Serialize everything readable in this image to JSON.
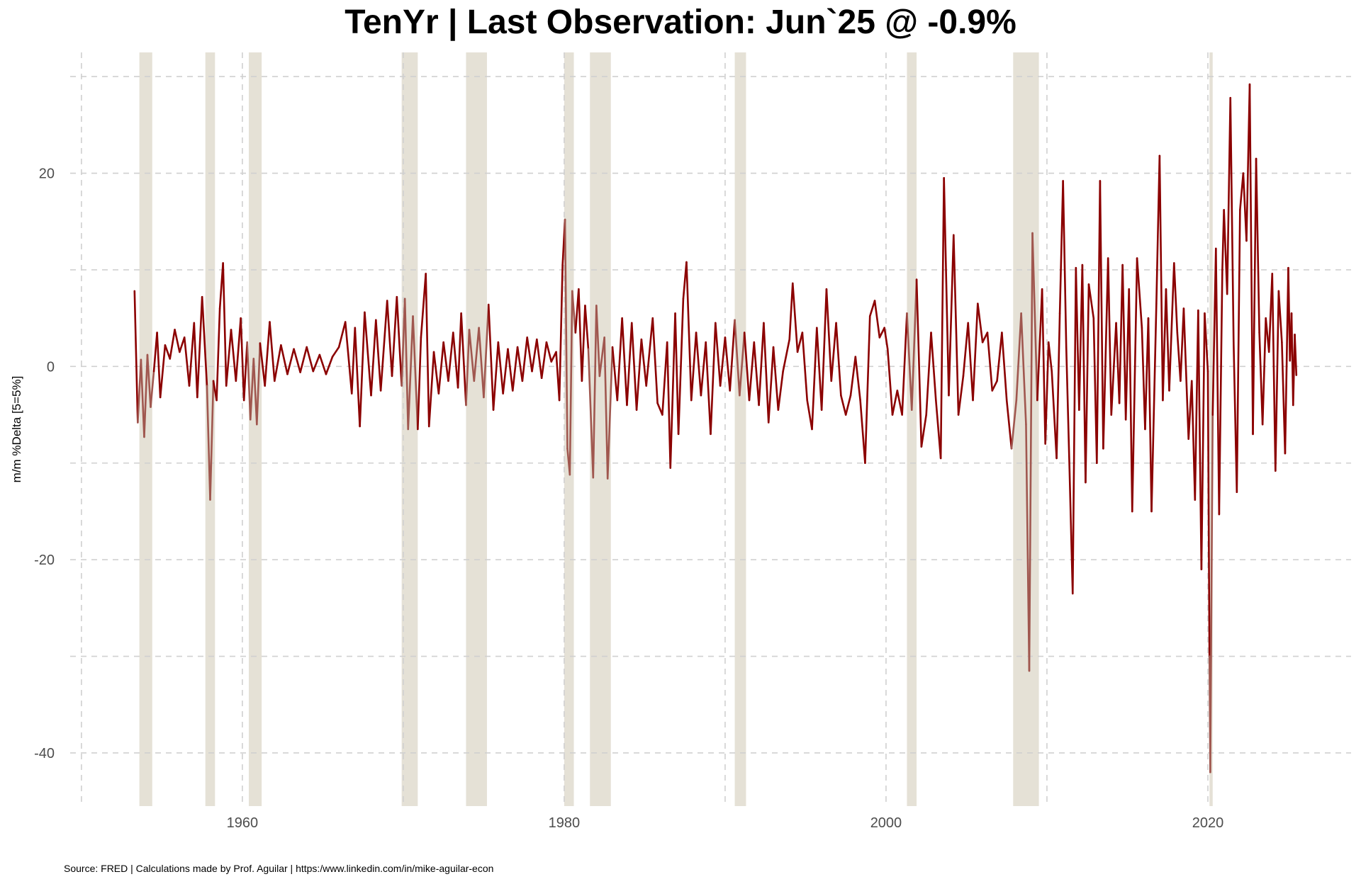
{
  "chart_data": {
    "type": "line",
    "title": "TenYr | Last Observation: Jun`25 @ -0.9%",
    "ylabel": "m/m %Delta [5=5%]",
    "xlabel": "",
    "xlim": [
      1949.3,
      2028.9
    ],
    "ylim": [
      -45.5,
      32.5
    ],
    "x_ticks": [
      1960,
      1980,
      2000,
      2020
    ],
    "x_tick_labels": [
      "1960",
      "1980",
      "2000",
      "2020"
    ],
    "y_ticks": [
      -40,
      -20,
      0,
      20
    ],
    "y_tick_labels": [
      "-40",
      "-20",
      "0",
      "20"
    ],
    "grid": true,
    "legend": "none",
    "line_color": "#8b0000",
    "recession_line_color": "#a0574f",
    "recession_band_color": "#e5e1d6",
    "recessions": [
      [
        1953.6,
        1954.4
      ],
      [
        1957.7,
        1958.3
      ],
      [
        1960.4,
        1961.2
      ],
      [
        1969.9,
        1970.9
      ],
      [
        1973.9,
        1975.2
      ],
      [
        1980.0,
        1980.6
      ],
      [
        1981.6,
        1982.9
      ],
      [
        1990.6,
        1991.3
      ],
      [
        2001.3,
        2001.9
      ],
      [
        2007.9,
        2009.5
      ],
      [
        2020.1,
        2020.3
      ]
    ],
    "series": [
      {
        "values": [
          [
            1953.3,
            7.8
          ],
          [
            1953.5,
            -5.8
          ],
          [
            1953.7,
            0.7
          ],
          [
            1953.9,
            -7.3
          ],
          [
            1954.1,
            1.2
          ],
          [
            1954.3,
            -4.2
          ],
          [
            1954.5,
            -0.5
          ],
          [
            1954.7,
            3.5
          ],
          [
            1954.9,
            -3.2
          ],
          [
            1955.2,
            2.2
          ],
          [
            1955.5,
            0.8
          ],
          [
            1955.8,
            3.8
          ],
          [
            1956.1,
            1.5
          ],
          [
            1956.4,
            3.0
          ],
          [
            1956.7,
            -2.0
          ],
          [
            1957.0,
            4.5
          ],
          [
            1957.2,
            -3.2
          ],
          [
            1957.5,
            7.2
          ],
          [
            1957.8,
            -2.0
          ],
          [
            1958.0,
            -13.8
          ],
          [
            1958.2,
            -1.5
          ],
          [
            1958.4,
            -3.5
          ],
          [
            1958.6,
            6.0
          ],
          [
            1958.8,
            10.7
          ],
          [
            1959.0,
            -2.0
          ],
          [
            1959.3,
            3.8
          ],
          [
            1959.6,
            -1.5
          ],
          [
            1959.9,
            5.0
          ],
          [
            1960.1,
            -3.5
          ],
          [
            1960.3,
            2.5
          ],
          [
            1960.5,
            -5.5
          ],
          [
            1960.7,
            0.8
          ],
          [
            1960.9,
            -6.0
          ],
          [
            1961.1,
            2.4
          ],
          [
            1961.4,
            -2.0
          ],
          [
            1961.7,
            4.6
          ],
          [
            1962.0,
            -1.5
          ],
          [
            1962.4,
            2.2
          ],
          [
            1962.8,
            -0.8
          ],
          [
            1963.2,
            1.8
          ],
          [
            1963.6,
            -0.6
          ],
          [
            1964.0,
            2.0
          ],
          [
            1964.4,
            -0.5
          ],
          [
            1964.8,
            1.2
          ],
          [
            1965.2,
            -0.8
          ],
          [
            1965.6,
            1.0
          ],
          [
            1966.0,
            2.0
          ],
          [
            1966.4,
            4.6
          ],
          [
            1966.8,
            -2.8
          ],
          [
            1967.0,
            4.0
          ],
          [
            1967.3,
            -6.2
          ],
          [
            1967.6,
            5.6
          ],
          [
            1968.0,
            -3.0
          ],
          [
            1968.3,
            4.8
          ],
          [
            1968.6,
            -2.5
          ],
          [
            1969.0,
            6.8
          ],
          [
            1969.3,
            -1.0
          ],
          [
            1969.6,
            7.2
          ],
          [
            1969.9,
            -2.0
          ],
          [
            1970.1,
            7.0
          ],
          [
            1970.3,
            -6.5
          ],
          [
            1970.6,
            5.2
          ],
          [
            1970.9,
            -6.5
          ],
          [
            1971.1,
            3.0
          ],
          [
            1971.4,
            9.6
          ],
          [
            1971.6,
            -6.2
          ],
          [
            1971.9,
            1.5
          ],
          [
            1972.2,
            -2.8
          ],
          [
            1972.5,
            2.5
          ],
          [
            1972.8,
            -1.5
          ],
          [
            1973.1,
            3.5
          ],
          [
            1973.4,
            -2.2
          ],
          [
            1973.6,
            5.5
          ],
          [
            1973.9,
            -4.0
          ],
          [
            1974.1,
            3.8
          ],
          [
            1974.4,
            -1.5
          ],
          [
            1974.7,
            4.0
          ],
          [
            1975.0,
            -3.2
          ],
          [
            1975.3,
            6.4
          ],
          [
            1975.6,
            -4.5
          ],
          [
            1975.9,
            2.5
          ],
          [
            1976.2,
            -2.8
          ],
          [
            1976.5,
            1.8
          ],
          [
            1976.8,
            -2.5
          ],
          [
            1977.1,
            2.0
          ],
          [
            1977.4,
            -1.5
          ],
          [
            1977.7,
            3.0
          ],
          [
            1978.0,
            -0.5
          ],
          [
            1978.3,
            2.8
          ],
          [
            1978.6,
            -1.2
          ],
          [
            1978.9,
            2.5
          ],
          [
            1979.2,
            0.5
          ],
          [
            1979.5,
            1.5
          ],
          [
            1979.7,
            -3.5
          ],
          [
            1979.9,
            10.5
          ],
          [
            1980.05,
            15.2
          ],
          [
            1980.2,
            -8.5
          ],
          [
            1980.35,
            -11.2
          ],
          [
            1980.5,
            7.8
          ],
          [
            1980.7,
            3.5
          ],
          [
            1980.9,
            8.0
          ],
          [
            1981.1,
            -1.5
          ],
          [
            1981.3,
            6.3
          ],
          [
            1981.5,
            1.8
          ],
          [
            1981.8,
            -11.5
          ],
          [
            1982.0,
            6.3
          ],
          [
            1982.2,
            -1.0
          ],
          [
            1982.5,
            3.0
          ],
          [
            1982.7,
            -11.6
          ],
          [
            1983.0,
            2.0
          ],
          [
            1983.3,
            -3.5
          ],
          [
            1983.6,
            5.0
          ],
          [
            1983.9,
            -4.0
          ],
          [
            1984.2,
            4.5
          ],
          [
            1984.5,
            -4.5
          ],
          [
            1984.8,
            2.8
          ],
          [
            1985.1,
            -2.0
          ],
          [
            1985.5,
            5.0
          ],
          [
            1985.8,
            -3.8
          ],
          [
            1986.1,
            -5.0
          ],
          [
            1986.4,
            2.5
          ],
          [
            1986.6,
            -10.5
          ],
          [
            1986.9,
            5.5
          ],
          [
            1987.1,
            -7.0
          ],
          [
            1987.4,
            7.0
          ],
          [
            1987.6,
            10.8
          ],
          [
            1987.9,
            -3.5
          ],
          [
            1988.2,
            3.5
          ],
          [
            1988.5,
            -3.0
          ],
          [
            1988.8,
            2.5
          ],
          [
            1989.1,
            -7.0
          ],
          [
            1989.4,
            4.5
          ],
          [
            1989.7,
            -2.0
          ],
          [
            1990.0,
            3.0
          ],
          [
            1990.3,
            -2.5
          ],
          [
            1990.6,
            4.8
          ],
          [
            1990.9,
            -3.0
          ],
          [
            1991.2,
            3.5
          ],
          [
            1991.5,
            -3.5
          ],
          [
            1991.8,
            2.5
          ],
          [
            1992.1,
            -4.0
          ],
          [
            1992.4,
            4.5
          ],
          [
            1992.7,
            -5.8
          ],
          [
            1993.0,
            2.0
          ],
          [
            1993.3,
            -4.5
          ],
          [
            1993.6,
            -0.5
          ],
          [
            1994.0,
            2.8
          ],
          [
            1994.2,
            8.6
          ],
          [
            1994.5,
            1.5
          ],
          [
            1994.8,
            3.5
          ],
          [
            1995.1,
            -3.5
          ],
          [
            1995.4,
            -6.5
          ],
          [
            1995.7,
            4.0
          ],
          [
            1996.0,
            -4.5
          ],
          [
            1996.3,
            8.0
          ],
          [
            1996.6,
            -1.5
          ],
          [
            1996.9,
            4.5
          ],
          [
            1997.2,
            -3.0
          ],
          [
            1997.5,
            -5.0
          ],
          [
            1997.8,
            -3.0
          ],
          [
            1998.1,
            1.0
          ],
          [
            1998.4,
            -3.5
          ],
          [
            1998.7,
            -10.0
          ],
          [
            1999.0,
            5.2
          ],
          [
            1999.3,
            6.8
          ],
          [
            1999.6,
            3.0
          ],
          [
            1999.9,
            4.0
          ],
          [
            2000.1,
            1.8
          ],
          [
            2000.4,
            -5.0
          ],
          [
            2000.7,
            -2.5
          ],
          [
            2001.0,
            -5.0
          ],
          [
            2001.3,
            5.5
          ],
          [
            2001.6,
            -4.5
          ],
          [
            2001.9,
            9.0
          ],
          [
            2002.2,
            -8.3
          ],
          [
            2002.5,
            -5.0
          ],
          [
            2002.8,
            3.5
          ],
          [
            2003.1,
            -3.5
          ],
          [
            2003.4,
            -9.5
          ],
          [
            2003.6,
            19.5
          ],
          [
            2003.9,
            -3.0
          ],
          [
            2004.2,
            13.6
          ],
          [
            2004.5,
            -5.0
          ],
          [
            2004.8,
            -1.0
          ],
          [
            2005.1,
            4.5
          ],
          [
            2005.4,
            -3.5
          ],
          [
            2005.7,
            6.5
          ],
          [
            2006.0,
            2.5
          ],
          [
            2006.3,
            3.5
          ],
          [
            2006.6,
            -2.5
          ],
          [
            2006.9,
            -1.5
          ],
          [
            2007.2,
            3.5
          ],
          [
            2007.5,
            -3.5
          ],
          [
            2007.8,
            -8.5
          ],
          [
            2008.1,
            -3.5
          ],
          [
            2008.4,
            5.5
          ],
          [
            2008.7,
            -6.0
          ],
          [
            2008.9,
            -31.5
          ],
          [
            2009.1,
            13.8
          ],
          [
            2009.4,
            -3.5
          ],
          [
            2009.7,
            8.0
          ],
          [
            2009.9,
            -8.0
          ],
          [
            2010.1,
            2.5
          ],
          [
            2010.3,
            -0.5
          ],
          [
            2010.6,
            -9.5
          ],
          [
            2010.8,
            5.5
          ],
          [
            2011.0,
            19.2
          ],
          [
            2011.2,
            2.0
          ],
          [
            2011.4,
            -10.5
          ],
          [
            2011.6,
            -23.5
          ],
          [
            2011.8,
            10.2
          ],
          [
            2012.0,
            -4.5
          ],
          [
            2012.2,
            10.5
          ],
          [
            2012.4,
            -12.0
          ],
          [
            2012.6,
            8.5
          ],
          [
            2012.9,
            5.0
          ],
          [
            2013.1,
            -10.0
          ],
          [
            2013.3,
            19.2
          ],
          [
            2013.5,
            -8.5
          ],
          [
            2013.8,
            11.2
          ],
          [
            2014.0,
            -5.0
          ],
          [
            2014.3,
            4.5
          ],
          [
            2014.5,
            -3.8
          ],
          [
            2014.7,
            10.5
          ],
          [
            2014.9,
            -5.5
          ],
          [
            2015.1,
            8.0
          ],
          [
            2015.3,
            -15.0
          ],
          [
            2015.6,
            11.2
          ],
          [
            2015.9,
            4.0
          ],
          [
            2016.1,
            -6.5
          ],
          [
            2016.3,
            5.0
          ],
          [
            2016.5,
            -15.0
          ],
          [
            2016.8,
            6.5
          ],
          [
            2017.0,
            21.8
          ],
          [
            2017.2,
            -3.5
          ],
          [
            2017.4,
            8.0
          ],
          [
            2017.6,
            -2.5
          ],
          [
            2017.9,
            10.7
          ],
          [
            2018.1,
            3.5
          ],
          [
            2018.3,
            -1.5
          ],
          [
            2018.5,
            6.0
          ],
          [
            2018.8,
            -7.5
          ],
          [
            2019.0,
            -1.5
          ],
          [
            2019.2,
            -13.8
          ],
          [
            2019.4,
            5.8
          ],
          [
            2019.6,
            -21.0
          ],
          [
            2019.8,
            5.5
          ],
          [
            2020.0,
            -0.5
          ],
          [
            2020.1,
            -30.0
          ],
          [
            2020.15,
            -42.0
          ],
          [
            2020.3,
            -5.0
          ],
          [
            2020.5,
            12.2
          ],
          [
            2020.7,
            -15.3
          ],
          [
            2020.9,
            10.0
          ],
          [
            2021.0,
            16.2
          ],
          [
            2021.2,
            7.5
          ],
          [
            2021.4,
            27.8
          ],
          [
            2021.6,
            2.5
          ],
          [
            2021.8,
            -13.0
          ],
          [
            2022.0,
            16.2
          ],
          [
            2022.2,
            20.0
          ],
          [
            2022.4,
            13.0
          ],
          [
            2022.6,
            29.2
          ],
          [
            2022.8,
            -7.0
          ],
          [
            2023.0,
            21.5
          ],
          [
            2023.2,
            3.5
          ],
          [
            2023.4,
            -6.0
          ],
          [
            2023.6,
            5.0
          ],
          [
            2023.8,
            1.5
          ],
          [
            2024.0,
            9.6
          ],
          [
            2024.2,
            -10.8
          ],
          [
            2024.4,
            7.8
          ],
          [
            2024.6,
            2.5
          ],
          [
            2024.8,
            -9.0
          ],
          [
            2025.0,
            10.2
          ],
          [
            2025.1,
            0.6
          ],
          [
            2025.2,
            5.5
          ],
          [
            2025.3,
            -4.0
          ],
          [
            2025.4,
            3.3
          ],
          [
            2025.5,
            -0.9
          ]
        ]
      }
    ]
  },
  "footer": {
    "source": "Source: FRED | Calculations made by Prof. Aguilar | https:/www.linkedin.com/in/mike-aguilar-econ"
  }
}
